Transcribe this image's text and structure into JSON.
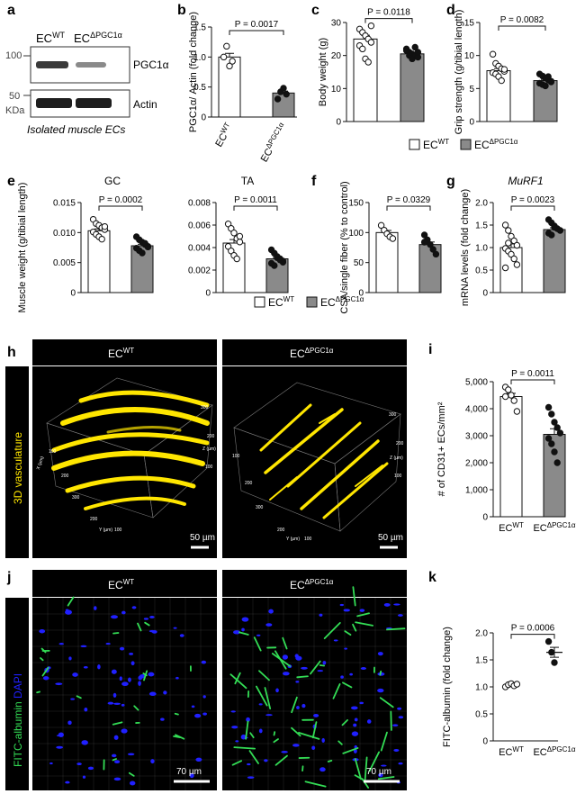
{
  "panel_letters": {
    "a": "a",
    "b": "b",
    "c": "c",
    "d": "d",
    "e": "e",
    "f": "f",
    "g": "g",
    "h": "h",
    "i": "i",
    "j": "j",
    "k": "k"
  },
  "groups": {
    "wt": "EC",
    "wt_sup": "WT",
    "ko": "EC",
    "ko_sup": "ΔPGC1α"
  },
  "colors": {
    "wt_bar": "#ffffff",
    "ko_bar": "#8a8a8a",
    "points_wt": "#ffffff",
    "points_ko": "#111111",
    "vessel": "#ffe600",
    "fitc": "#33dd55",
    "dapi": "#2020ff"
  },
  "western": {
    "ladder_top": "100",
    "ladder_bottom": "50",
    "unit": "KDa",
    "label_top": "PGC1α",
    "label_bottom": "Actin",
    "caption": "Isolated muscle ECs"
  },
  "legend_mid": {
    "wt": "EC",
    "wt_sup": "WT",
    "ko": "EC",
    "ko_sup": "ΔPGC1α"
  },
  "legend_low": {
    "wt": "EC",
    "wt_sup": "WT",
    "ko": "EC",
    "ko_sup": "ΔPGC1α"
  },
  "panel_h": {
    "header_wt": "EC",
    "header_wt_sup": "WT",
    "header_ko": "EC",
    "header_ko_sup": "ΔPGC1α",
    "side_label": "3D vasculature",
    "scale": "50 µm",
    "axis_unit_x": "X (µm)",
    "axis_unit_y": "Y (µm)",
    "axis_unit_z": "Z (µm)",
    "ticks": [
      "100",
      "200",
      "300"
    ]
  },
  "panel_j": {
    "header_wt": "EC",
    "header_wt_sup": "WT",
    "header_ko": "EC",
    "header_ko_sup": "ΔPGC1α",
    "side_green": "FITC-albumin",
    "side_blue": "DAPI",
    "scale": "70 µm"
  },
  "chart_data": [
    {
      "id": "b",
      "type": "bar",
      "ylabel": "PGC1α/ Actin (fold change)",
      "ylim": [
        0,
        1.5
      ],
      "yticks": [
        0,
        0.5,
        1.0,
        1.5
      ],
      "ytick_labels": [
        "0",
        "0.5",
        "1.0",
        "1.5"
      ],
      "p": "P = 0.0017",
      "series": [
        {
          "values_mean": [
            1.0,
            0.4
          ],
          "points": [
            [
              1.0,
              1.18,
              0.85,
              0.93
            ],
            [
              0.3,
              0.42,
              0.48,
              0.38
            ]
          ]
        }
      ],
      "rotated_xlabels": true
    },
    {
      "id": "c",
      "type": "bar",
      "ylabel": "Body weight (g)",
      "ylim": [
        0,
        30
      ],
      "yticks": [
        0,
        10,
        20,
        30
      ],
      "ytick_labels": [
        "0",
        "10",
        "20",
        "30"
      ],
      "p": "P = 0.0118",
      "series": [
        {
          "values_mean": [
            25,
            20.5
          ],
          "points": [
            [
              28,
              27,
              26,
              25,
              24,
              23,
              22,
              19,
              18,
              29
            ],
            [
              22,
              21,
              20.5,
              20,
              19.5,
              21.5,
              20,
              19,
              22.5,
              21
            ]
          ]
        }
      ]
    },
    {
      "id": "d",
      "type": "bar",
      "ylabel": "Grip strength (g/tibial length)",
      "ylim": [
        0,
        15
      ],
      "yticks": [
        0,
        5,
        10,
        15
      ],
      "ytick_labels": [
        "0",
        "5",
        "10",
        "15"
      ],
      "p": "P = 0.0082",
      "series": [
        {
          "values_mean": [
            7.7,
            6.2
          ],
          "points": [
            [
              10.2,
              8.8,
              8.4,
              8,
              7.6,
              7.4,
              7.2,
              6.8,
              6.2,
              7.9
            ],
            [
              7.2,
              6.9,
              6.6,
              6.3,
              6,
              5.8,
              5.6,
              5.4,
              6.8,
              6.1
            ]
          ]
        }
      ]
    },
    {
      "id": "e_gc",
      "type": "bar",
      "title": "GC",
      "ylabel": "Muscle weight (g/tibial length)",
      "ylim": [
        0,
        0.015
      ],
      "yticks": [
        0,
        0.005,
        0.01,
        0.015
      ],
      "ytick_labels": [
        "0",
        "0.005",
        "0.010",
        "0.015"
      ],
      "p": "P = 0.0002",
      "series": [
        {
          "values_mean": [
            0.0103,
            0.0078
          ],
          "points": [
            [
              0.0122,
              0.0115,
              0.0112,
              0.0108,
              0.0105,
              0.0101,
              0.0097,
              0.0093,
              0.0089,
              0.011
            ],
            [
              0.0093,
              0.0088,
              0.0084,
              0.008,
              0.0077,
              0.0074,
              0.007,
              0.0066,
              0.0082,
              0.0076
            ]
          ]
        }
      ]
    },
    {
      "id": "e_ta",
      "type": "bar",
      "title": "TA",
      "ylabel": "",
      "ylim": [
        0,
        0.008
      ],
      "yticks": [
        0,
        0.002,
        0.004,
        0.006,
        0.008
      ],
      "ytick_labels": [
        "0",
        "0.002",
        "0.004",
        "0.006",
        "0.008"
      ],
      "p": "P = 0.0011",
      "series": [
        {
          "values_mean": [
            0.0044,
            0.003
          ],
          "points": [
            [
              0.0061,
              0.0057,
              0.0053,
              0.0048,
              0.0045,
              0.0041,
              0.0037,
              0.0033,
              0.003,
              0.005
            ],
            [
              0.0038,
              0.0035,
              0.0032,
              0.003,
              0.0028,
              0.0026,
              0.0024,
              0.0031,
              0.0029,
              0.0027
            ]
          ]
        }
      ]
    },
    {
      "id": "f",
      "type": "bar",
      "ylabel": "CSA/single fiber (% to control)",
      "ylim": [
        0,
        150
      ],
      "yticks": [
        0,
        50,
        100,
        150
      ],
      "ytick_labels": [
        "0",
        "50",
        "100",
        "150"
      ],
      "p": "P = 0.0329",
      "series": [
        {
          "values_mean": [
            100,
            80
          ],
          "points": [
            [
              112,
              104,
              98,
              93,
              90
            ],
            [
              96,
              88,
              80,
              72,
              64,
              84
            ]
          ]
        }
      ]
    },
    {
      "id": "g",
      "type": "bar",
      "title": "MuRF1",
      "ylabel": "mRNA levels (fold change)",
      "ylim": [
        0,
        2.0
      ],
      "yticks": [
        0,
        0.5,
        1.0,
        1.5,
        2.0
      ],
      "ytick_labels": [
        "0",
        "0.5",
        "1.0",
        "1.5",
        "2.0"
      ],
      "p": "P = 0.0023",
      "series": [
        {
          "values_mean": [
            1.0,
            1.4
          ],
          "points": [
            [
              1.5,
              1.38,
              1.25,
              1.15,
              1.05,
              0.98,
              0.92,
              0.85,
              0.75,
              0.62,
              0.55,
              1.1
            ],
            [
              1.62,
              1.55,
              1.48,
              1.42,
              1.38,
              1.32,
              1.28,
              1.45
            ]
          ]
        }
      ]
    },
    {
      "id": "i",
      "type": "bar",
      "ylabel": "# of CD31+ ECs/mm²",
      "ylim": [
        0,
        5000
      ],
      "yticks": [
        0,
        1000,
        2000,
        3000,
        4000,
        5000
      ],
      "ytick_labels": [
        "0",
        "1,000",
        "2,000",
        "3,000",
        "4,000",
        "5,000"
      ],
      "p": "P = 0.0011",
      "series": [
        {
          "values_mean": [
            4450,
            3050
          ],
          "points": [
            [
              4800,
              4700,
              4500,
              4300,
              3900,
              4450
            ],
            [
              4050,
              3800,
              3500,
              3300,
              3100,
              2900,
              2700,
              2400,
              2000
            ]
          ]
        }
      ]
    },
    {
      "id": "k",
      "type": "bar",
      "ylabel": "FITC-albumin (fold change)",
      "ylim": [
        0,
        2.0
      ],
      "yticks": [
        0,
        0.5,
        1.0,
        1.5,
        2.0
      ],
      "ytick_labels": [
        "0",
        "0.5",
        "1.0",
        "1.5",
        "2.0"
      ],
      "p": "P = 0.0006",
      "series": [
        {
          "values_mean": [
            1.03,
            1.64
          ],
          "points": [
            [
              1.0,
              1.04,
              1.06,
              1.02,
              1.05
            ],
            [
              1.84,
              1.64,
              1.45
            ]
          ]
        }
      ],
      "no_bars": true
    }
  ]
}
